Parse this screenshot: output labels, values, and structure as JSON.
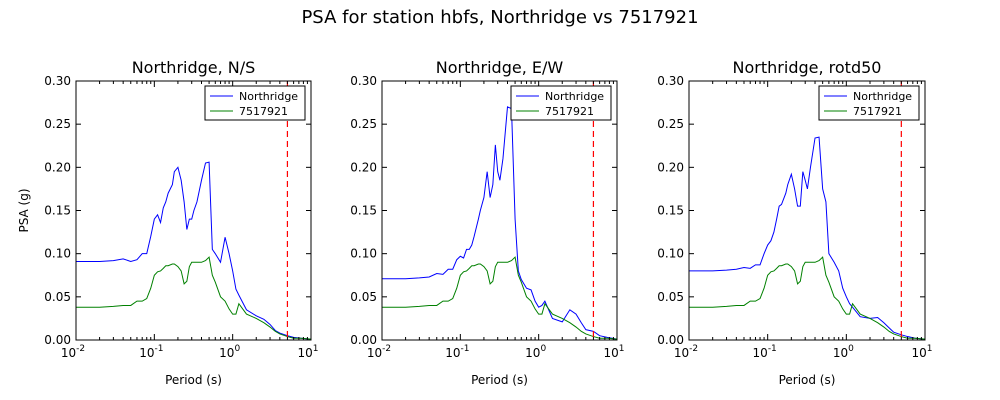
{
  "suptitle": "PSA for station hbfs, Northridge vs 7517921",
  "colors": {
    "northridge": "#0000ff",
    "event": "#008000",
    "marker": "#ff0000"
  },
  "chart_data": [
    {
      "type": "line",
      "title": "Northridge, N/S",
      "xlabel": "Period (s)",
      "ylabel": "PSA (g)",
      "xscale": "log",
      "xlim": [
        0.01,
        10
      ],
      "ylim": [
        0,
        0.3
      ],
      "yticks": [
        "0.00",
        "0.05",
        "0.10",
        "0.15",
        "0.20",
        "0.25",
        "0.30"
      ],
      "xticks": [
        {
          "base": "10",
          "exp": "-2"
        },
        {
          "base": "10",
          "exp": "-1"
        },
        {
          "base": "10",
          "exp": "0"
        },
        {
          "base": "10",
          "exp": "1"
        }
      ],
      "legend_position": "top-right",
      "vline": 5,
      "series": [
        {
          "name": "Northridge",
          "color": "#0000ff",
          "x": [
            0.01,
            0.02,
            0.03,
            0.04,
            0.05,
            0.06,
            0.07,
            0.08,
            0.09,
            0.1,
            0.11,
            0.12,
            0.13,
            0.14,
            0.15,
            0.17,
            0.18,
            0.2,
            0.22,
            0.24,
            0.26,
            0.28,
            0.3,
            0.32,
            0.35,
            0.4,
            0.45,
            0.5,
            0.55,
            0.6,
            0.7,
            0.8,
            0.9,
            1.0,
            1.1,
            1.2,
            1.5,
            2.0,
            2.5,
            3.0,
            3.5,
            4.0,
            5.0,
            6.0,
            7.5,
            10.0
          ],
          "y": [
            0.091,
            0.091,
            0.092,
            0.094,
            0.091,
            0.093,
            0.1,
            0.1,
            0.12,
            0.14,
            0.145,
            0.136,
            0.153,
            0.16,
            0.17,
            0.18,
            0.195,
            0.2,
            0.185,
            0.16,
            0.128,
            0.14,
            0.14,
            0.15,
            0.16,
            0.185,
            0.205,
            0.206,
            0.105,
            0.1,
            0.09,
            0.119,
            0.1,
            0.08,
            0.059,
            0.052,
            0.035,
            0.028,
            0.024,
            0.018,
            0.011,
            0.008,
            0.005,
            0.003,
            0.002,
            0.001
          ]
        },
        {
          "name": "7517921",
          "color": "#008000",
          "x": [
            0.01,
            0.02,
            0.03,
            0.04,
            0.05,
            0.06,
            0.07,
            0.08,
            0.09,
            0.1,
            0.11,
            0.12,
            0.13,
            0.14,
            0.15,
            0.17,
            0.18,
            0.2,
            0.22,
            0.24,
            0.26,
            0.28,
            0.3,
            0.32,
            0.35,
            0.4,
            0.45,
            0.5,
            0.55,
            0.6,
            0.7,
            0.8,
            0.9,
            1.0,
            1.1,
            1.2,
            1.5,
            2.0,
            2.5,
            3.0,
            3.5,
            4.0,
            5.0,
            6.0,
            7.5,
            10.0
          ],
          "y": [
            0.038,
            0.038,
            0.039,
            0.04,
            0.04,
            0.045,
            0.045,
            0.048,
            0.06,
            0.075,
            0.079,
            0.08,
            0.083,
            0.086,
            0.086,
            0.088,
            0.088,
            0.085,
            0.08,
            0.065,
            0.068,
            0.085,
            0.09,
            0.09,
            0.09,
            0.09,
            0.092,
            0.096,
            0.075,
            0.067,
            0.05,
            0.045,
            0.036,
            0.03,
            0.03,
            0.042,
            0.03,
            0.025,
            0.02,
            0.015,
            0.01,
            0.007,
            0.004,
            0.002,
            0.002,
            0.001
          ]
        }
      ]
    },
    {
      "type": "line",
      "title": "Northridge, E/W",
      "xlabel": "Period (s)",
      "ylabel": "",
      "xscale": "log",
      "xlim": [
        0.01,
        10
      ],
      "ylim": [
        0,
        0.3
      ],
      "yticks": [
        "0.00",
        "0.05",
        "0.10",
        "0.15",
        "0.20",
        "0.25",
        "0.30"
      ],
      "xticks": [
        {
          "base": "10",
          "exp": "-2"
        },
        {
          "base": "10",
          "exp": "-1"
        },
        {
          "base": "10",
          "exp": "0"
        },
        {
          "base": "10",
          "exp": "1"
        }
      ],
      "legend_position": "top-right",
      "vline": 5,
      "series": [
        {
          "name": "Northridge",
          "color": "#0000ff",
          "x": [
            0.01,
            0.02,
            0.03,
            0.04,
            0.05,
            0.06,
            0.07,
            0.08,
            0.09,
            0.1,
            0.11,
            0.12,
            0.13,
            0.14,
            0.15,
            0.17,
            0.18,
            0.2,
            0.22,
            0.24,
            0.26,
            0.28,
            0.3,
            0.32,
            0.35,
            0.4,
            0.45,
            0.5,
            0.55,
            0.6,
            0.7,
            0.8,
            0.9,
            1.0,
            1.1,
            1.2,
            1.5,
            2.0,
            2.5,
            3.0,
            3.5,
            4.0,
            5.0,
            6.0,
            7.5,
            10.0
          ],
          "y": [
            0.071,
            0.071,
            0.072,
            0.073,
            0.077,
            0.076,
            0.082,
            0.082,
            0.093,
            0.097,
            0.095,
            0.105,
            0.105,
            0.11,
            0.12,
            0.14,
            0.15,
            0.165,
            0.195,
            0.165,
            0.18,
            0.226,
            0.195,
            0.185,
            0.21,
            0.27,
            0.268,
            0.14,
            0.08,
            0.07,
            0.06,
            0.058,
            0.045,
            0.038,
            0.04,
            0.045,
            0.025,
            0.021,
            0.035,
            0.03,
            0.02,
            0.012,
            0.01,
            0.005,
            0.003,
            0.001
          ]
        },
        {
          "name": "7517921",
          "color": "#008000",
          "x": [
            0.01,
            0.02,
            0.03,
            0.04,
            0.05,
            0.06,
            0.07,
            0.08,
            0.09,
            0.1,
            0.11,
            0.12,
            0.13,
            0.14,
            0.15,
            0.17,
            0.18,
            0.2,
            0.22,
            0.24,
            0.26,
            0.28,
            0.3,
            0.32,
            0.35,
            0.4,
            0.45,
            0.5,
            0.55,
            0.6,
            0.7,
            0.8,
            0.9,
            1.0,
            1.1,
            1.2,
            1.5,
            2.0,
            2.5,
            3.0,
            3.5,
            4.0,
            5.0,
            6.0,
            7.5,
            10.0
          ],
          "y": [
            0.038,
            0.038,
            0.039,
            0.04,
            0.04,
            0.045,
            0.045,
            0.048,
            0.06,
            0.075,
            0.079,
            0.08,
            0.083,
            0.086,
            0.086,
            0.088,
            0.088,
            0.085,
            0.08,
            0.065,
            0.068,
            0.085,
            0.09,
            0.09,
            0.09,
            0.09,
            0.092,
            0.096,
            0.075,
            0.067,
            0.05,
            0.045,
            0.036,
            0.03,
            0.03,
            0.042,
            0.03,
            0.025,
            0.02,
            0.015,
            0.01,
            0.007,
            0.004,
            0.002,
            0.002,
            0.001
          ]
        }
      ]
    },
    {
      "type": "line",
      "title": "Northridge, rotd50",
      "xlabel": "Period (s)",
      "ylabel": "",
      "xscale": "log",
      "xlim": [
        0.01,
        10
      ],
      "ylim": [
        0,
        0.3
      ],
      "yticks": [
        "0.00",
        "0.05",
        "0.10",
        "0.15",
        "0.20",
        "0.25",
        "0.30"
      ],
      "xticks": [
        {
          "base": "10",
          "exp": "-2"
        },
        {
          "base": "10",
          "exp": "-1"
        },
        {
          "base": "10",
          "exp": "0"
        },
        {
          "base": "10",
          "exp": "1"
        }
      ],
      "legend_position": "top-right",
      "vline": 5,
      "series": [
        {
          "name": "Northridge",
          "color": "#0000ff",
          "x": [
            0.01,
            0.02,
            0.03,
            0.04,
            0.05,
            0.06,
            0.07,
            0.08,
            0.09,
            0.1,
            0.11,
            0.12,
            0.13,
            0.14,
            0.15,
            0.17,
            0.18,
            0.2,
            0.22,
            0.24,
            0.26,
            0.28,
            0.3,
            0.32,
            0.35,
            0.4,
            0.45,
            0.5,
            0.55,
            0.6,
            0.7,
            0.8,
            0.9,
            1.0,
            1.1,
            1.2,
            1.5,
            2.0,
            2.5,
            3.0,
            3.5,
            4.0,
            5.0,
            6.0,
            7.5,
            10.0
          ],
          "y": [
            0.08,
            0.08,
            0.081,
            0.082,
            0.084,
            0.083,
            0.087,
            0.087,
            0.1,
            0.11,
            0.115,
            0.125,
            0.14,
            0.155,
            0.157,
            0.17,
            0.18,
            0.192,
            0.175,
            0.155,
            0.155,
            0.195,
            0.185,
            0.175,
            0.2,
            0.234,
            0.235,
            0.175,
            0.16,
            0.1,
            0.09,
            0.08,
            0.06,
            0.05,
            0.042,
            0.038,
            0.027,
            0.025,
            0.026,
            0.02,
            0.014,
            0.009,
            0.006,
            0.004,
            0.002,
            0.001
          ]
        },
        {
          "name": "7517921",
          "color": "#008000",
          "x": [
            0.01,
            0.02,
            0.03,
            0.04,
            0.05,
            0.06,
            0.07,
            0.08,
            0.09,
            0.1,
            0.11,
            0.12,
            0.13,
            0.14,
            0.15,
            0.17,
            0.18,
            0.2,
            0.22,
            0.24,
            0.26,
            0.28,
            0.3,
            0.32,
            0.35,
            0.4,
            0.45,
            0.5,
            0.55,
            0.6,
            0.7,
            0.8,
            0.9,
            1.0,
            1.1,
            1.2,
            1.5,
            2.0,
            2.5,
            3.0,
            3.5,
            4.0,
            5.0,
            6.0,
            7.5,
            10.0
          ],
          "y": [
            0.038,
            0.038,
            0.039,
            0.04,
            0.04,
            0.045,
            0.045,
            0.048,
            0.06,
            0.075,
            0.079,
            0.08,
            0.083,
            0.086,
            0.086,
            0.088,
            0.088,
            0.085,
            0.08,
            0.065,
            0.068,
            0.085,
            0.09,
            0.09,
            0.09,
            0.09,
            0.092,
            0.096,
            0.075,
            0.067,
            0.05,
            0.045,
            0.036,
            0.03,
            0.03,
            0.042,
            0.03,
            0.025,
            0.02,
            0.015,
            0.01,
            0.007,
            0.004,
            0.002,
            0.002,
            0.001
          ]
        }
      ]
    }
  ]
}
